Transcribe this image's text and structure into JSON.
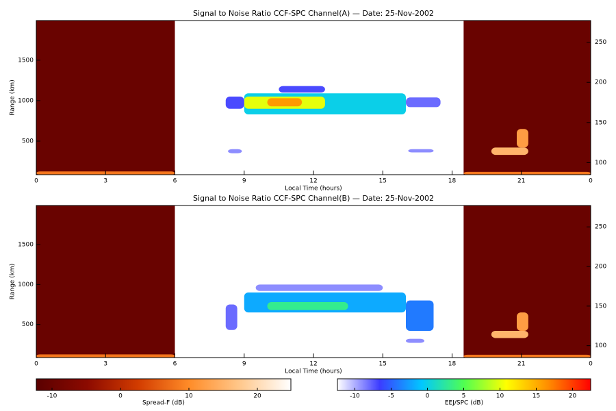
{
  "chart_data": [
    {
      "type": "range_time",
      "title": "Signal to Noise Ratio CCF-SPC Channel(A) — Date: 25-Nov-2002",
      "xlabel": "Local Time (hours)",
      "ylabel": "Range (km)",
      "xlim": [
        0,
        24
      ],
      "xticks": [
        0,
        3,
        6,
        9,
        12,
        15,
        18,
        21,
        {
          "value": 24,
          "label": "0"
        }
      ],
      "ylim": [
        85,
        1990
      ],
      "yticks": [
        500,
        1000,
        1500
      ],
      "y2lim": [
        85,
        277
      ],
      "y2ticks": [
        100,
        150,
        200,
        250
      ],
      "spread_f": {
        "intervals": [
          [
            0,
            6
          ],
          [
            18.5,
            24
          ]
        ],
        "snr": -10,
        "echoes": [
          {
            "x": [
              0,
              6
            ],
            "y": [
              85,
              125
            ],
            "snr": 8
          },
          {
            "x": [
              18.5,
              24
            ],
            "y": [
              85,
              120
            ],
            "snr": 8
          },
          {
            "x": [
              19.7,
              21.3
            ],
            "y": [
              330,
              420
            ],
            "snr": 15
          },
          {
            "x": [
              20.8,
              21.3
            ],
            "y": [
              420,
              650
            ],
            "snr": 12
          }
        ]
      },
      "echoes": [
        {
          "x": [
            9,
            16
          ],
          "y": [
            830,
            1090
          ],
          "snr": 0
        },
        {
          "x": [
            9,
            12.5
          ],
          "y": [
            900,
            1050
          ],
          "snr": 10
        },
        {
          "x": [
            10,
            11.5
          ],
          "y": [
            930,
            1030
          ],
          "snr": 16
        },
        {
          "x": [
            8.2,
            9
          ],
          "y": [
            900,
            1050
          ],
          "snr": -7
        },
        {
          "x": [
            16,
            17.5
          ],
          "y": [
            920,
            1040
          ],
          "snr": -8
        },
        {
          "x": [
            8.3,
            8.9
          ],
          "y": [
            350,
            400
          ],
          "snr": -9
        },
        {
          "x": [
            16.1,
            17.2
          ],
          "y": [
            360,
            400
          ],
          "snr": -9
        },
        {
          "x": [
            10.5,
            12.5
          ],
          "y": [
            1100,
            1180
          ],
          "snr": -7
        }
      ]
    },
    {
      "type": "range_time",
      "title": "Signal to Noise Ratio CCF-SPC Channel(B) — Date: 25-Nov-2002",
      "xlabel": "Local Time (hours)",
      "ylabel": "Range (km)",
      "xlim": [
        0,
        24
      ],
      "xticks": [
        0,
        3,
        6,
        9,
        12,
        15,
        18,
        21,
        {
          "value": 24,
          "label": "0"
        }
      ],
      "ylim": [
        85,
        1990
      ],
      "yticks": [
        500,
        1000,
        1500
      ],
      "y2lim": [
        85,
        277
      ],
      "y2ticks": [
        100,
        150,
        200,
        250
      ],
      "spread_f": {
        "intervals": [
          [
            0,
            6
          ],
          [
            18.5,
            24
          ]
        ],
        "snr": -10,
        "echoes": [
          {
            "x": [
              0,
              6
            ],
            "y": [
              85,
              125
            ],
            "snr": 8
          },
          {
            "x": [
              18.5,
              24
            ],
            "y": [
              85,
              120
            ],
            "snr": 8
          },
          {
            "x": [
              19.7,
              21.3
            ],
            "y": [
              330,
              420
            ],
            "snr": 15
          },
          {
            "x": [
              20.8,
              21.3
            ],
            "y": [
              420,
              650
            ],
            "snr": 12
          }
        ]
      },
      "echoes": [
        {
          "x": [
            9,
            16
          ],
          "y": [
            650,
            900
          ],
          "snr": -2
        },
        {
          "x": [
            10,
            13.5
          ],
          "y": [
            680,
            780
          ],
          "snr": 3
        },
        {
          "x": [
            8.2,
            8.7
          ],
          "y": [
            430,
            750
          ],
          "snr": -8
        },
        {
          "x": [
            16,
            17.2
          ],
          "y": [
            420,
            800
          ],
          "snr": -4
        },
        {
          "x": [
            16,
            16.8
          ],
          "y": [
            270,
            320
          ],
          "snr": -9
        },
        {
          "x": [
            9.5,
            15
          ],
          "y": [
            920,
            1000
          ],
          "snr": -9
        }
      ]
    },
    {
      "type": "colorbar",
      "label": "Spread-F (dB)",
      "lim": [
        -12.3,
        24.9
      ],
      "ticks": [
        -10,
        0,
        10,
        20
      ],
      "colors": [
        "#5a0000",
        "#8c0a00",
        "#d23c00",
        "#ff8c28",
        "#ffc88c",
        "#ffffff"
      ]
    },
    {
      "type": "colorbar",
      "label": "EEJ/SPC (dB)",
      "lim": [
        -12.4,
        22.5
      ],
      "ticks": [
        -10,
        -5,
        0,
        5,
        10,
        15,
        20
      ],
      "colors": [
        "#ffffff",
        "#3c3cff",
        "#00c8ff",
        "#50ff50",
        "#ffff00",
        "#ff8c00",
        "#ff0000"
      ]
    }
  ]
}
